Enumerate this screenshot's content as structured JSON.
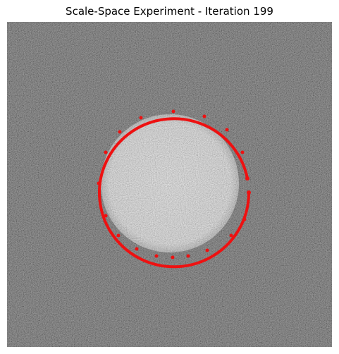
{
  "figure": {
    "title": "Scale-Space Experiment - Iteration 199"
  },
  "image": {
    "content": "noisy grayscale image with bright disk",
    "colors": {
      "background_gray": "#4f4f4f",
      "disk_gray": "#c8c8c8",
      "contour": "#ee1111"
    }
  }
}
